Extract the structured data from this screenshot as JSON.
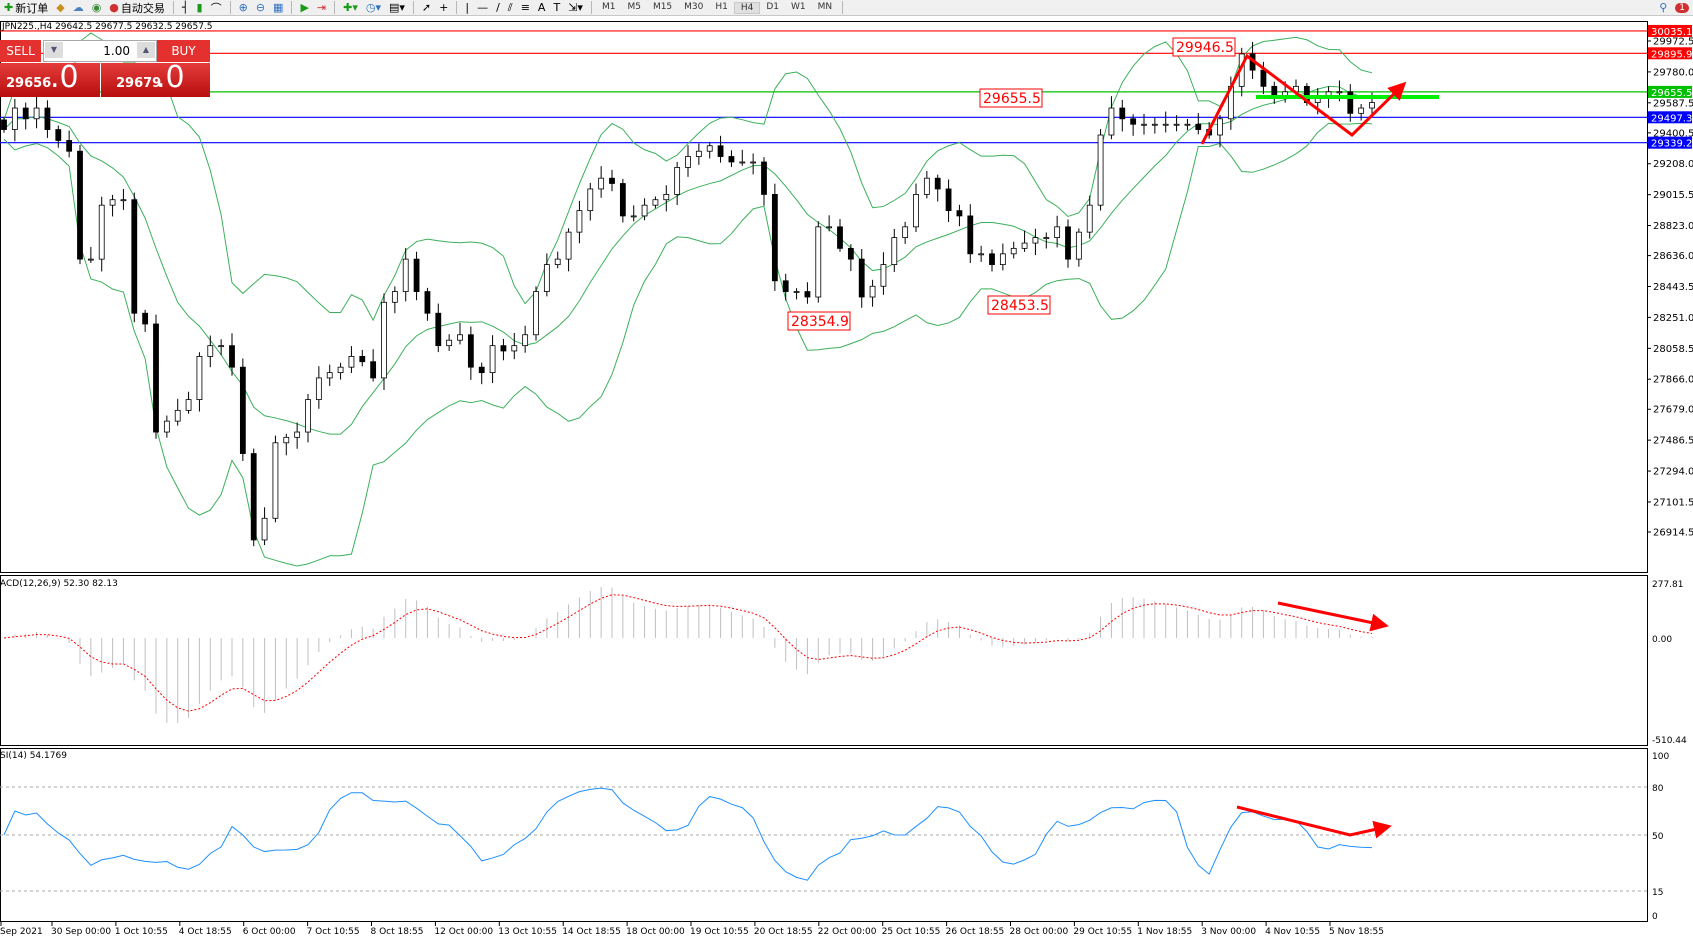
{
  "toolbar": {
    "new_order_label": "新订单",
    "auto_trading_label": "自动交易",
    "timeframes": [
      "M1",
      "M5",
      "M15",
      "M30",
      "H1",
      "H4",
      "D1",
      "W1",
      "MN"
    ],
    "active_timeframe": "H4",
    "notification_count": "1"
  },
  "chart_header": "JPN225.,H4  29642.5 29677.5 29632.5 29657.5",
  "trade_panel": {
    "sell_label": "SELL",
    "buy_label": "BUY",
    "volume": "1.00",
    "bid_main": "29656",
    "bid_big": ".0",
    "ask_main": "29679",
    "ask_big": ".0"
  },
  "colors": {
    "bull_body": "#ffffff",
    "bear_body": "#000000",
    "bands": "#3cb05a",
    "macd_hist": "#c0c0c0",
    "macd_signal": "#ff0000",
    "rsi": "#1e90ff",
    "annotation": "#ff0000",
    "support_green": "#00ee00"
  },
  "chart_data": [
    {
      "type": "candlestick",
      "symbol": "JPN225.",
      "timeframe": "H4",
      "indicator_overlay": "Bollinger Bands",
      "ylim": [
        26914.5,
        30035.1
      ],
      "y_ticks": [
        "29972.5",
        "29780.0",
        "29587.5",
        "29400.5",
        "29208.0",
        "29015.5",
        "28823.0",
        "28636.0",
        "28443.5",
        "28251.0",
        "28058.5",
        "27866.0",
        "27679.0",
        "27486.5",
        "27294.0",
        "27101.5",
        "26914.5"
      ],
      "x_ticks": [
        "Sep 2021",
        "30 Sep 00:00",
        "1 Oct 10:55",
        "4 Oct 18:55",
        "6 Oct 00:00",
        "7 Oct 10:55",
        "8 Oct 18:55",
        "12 Oct 00:00",
        "13 Oct 10:55",
        "14 Oct 18:55",
        "18 Oct 00:00",
        "19 Oct 10:55",
        "20 Oct 18:55",
        "22 Oct 00:00",
        "25 Oct 10:55",
        "26 Oct 18:55",
        "28 Oct 00:00",
        "29 Oct 10:55",
        "1 Nov 18:55",
        "3 Nov 00:00",
        "4 Nov 10:55",
        "5 Nov 18:55"
      ],
      "closes": [
        29421,
        29555,
        29488,
        29555,
        29421,
        29353,
        29286,
        28614,
        28614,
        28950,
        28984,
        28984,
        28277,
        28210,
        27537,
        27605,
        27672,
        27739,
        28008,
        28075,
        28075,
        27941,
        27403,
        26865,
        27000,
        27470,
        27504,
        27537,
        27739,
        27874,
        27907,
        27941,
        28008,
        27975,
        27874,
        28345,
        28412,
        28614,
        28412,
        28277,
        28075,
        28109,
        28143,
        27941,
        27907,
        28075,
        28042,
        28075,
        28143,
        28412,
        28580,
        28614,
        28782,
        28916,
        29051,
        29118,
        29085,
        28883,
        28883,
        28950,
        28984,
        29017,
        29185,
        29253,
        29286,
        29320,
        29253,
        29219,
        29219,
        29219,
        29017,
        28479,
        28412,
        28412,
        28378,
        28815,
        28815,
        28681,
        28614,
        28378,
        28445,
        28580,
        28748,
        28815,
        29017,
        29118,
        29051,
        28916,
        28883,
        28647,
        28647,
        28580,
        28647,
        28681,
        28714,
        28748,
        28748,
        28815,
        28614,
        28782,
        28950,
        29387,
        29555,
        29488,
        29454,
        29454,
        29454,
        29454,
        29454,
        29454,
        29421,
        29387,
        29488,
        29690,
        29892,
        29791,
        29690,
        29622,
        29656,
        29690,
        29589,
        29622,
        29656,
        29656,
        29522,
        29555,
        29589
      ],
      "price_lines": [
        {
          "price": "30035.1",
          "color": "#ff0000"
        },
        {
          "price": "29895.9",
          "color": "#ff0000"
        },
        {
          "price": "29655.5",
          "color": "#00c000"
        },
        {
          "price": "29497.3",
          "color": "#0000ff"
        },
        {
          "price": "29339.2",
          "color": "#0000ff"
        }
      ],
      "annotations": [
        "29946.5",
        "29655.5",
        "28354.9",
        "28453.5"
      ]
    },
    {
      "type": "bar+line",
      "label": "ACD(12,26,9) 52.30 82.13",
      "ylim": [
        -510.44,
        277.81
      ],
      "y_ticks": [
        "277.81",
        "0.00",
        "-510.44"
      ]
    },
    {
      "type": "line",
      "label": "SI(14) 54.1769",
      "ylim": [
        0,
        100
      ],
      "levels": [
        80,
        50,
        15
      ],
      "y_ticks": [
        "100",
        "80",
        "50",
        "15",
        "0"
      ]
    }
  ]
}
